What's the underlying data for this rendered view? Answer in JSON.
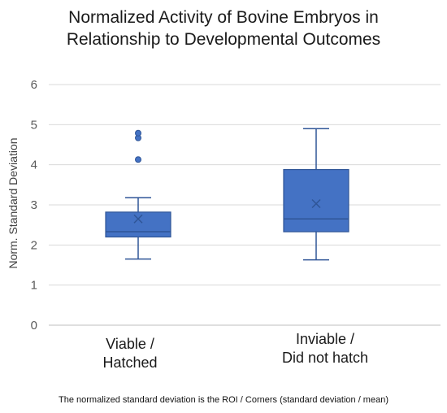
{
  "chart_data": {
    "type": "box",
    "title": [
      "Normalized Activity of Bovine Embryos in",
      "Relationship to Developmental Outcomes"
    ],
    "ylabel": "Norm. Standard Deviation",
    "ylim": [
      0,
      6
    ],
    "yticks": [
      0,
      1,
      2,
      3,
      4,
      5,
      6
    ],
    "ytick_labels": [
      "0",
      "1",
      "2",
      "3",
      "4",
      "5",
      "6"
    ],
    "grid": true,
    "color": "#4472C4",
    "categories": [
      {
        "lines": [
          "Viable /",
          "Hatched"
        ],
        "whisker_low": 1.65,
        "q1": 2.2,
        "median": 2.33,
        "q3": 2.82,
        "whisker_high": 3.18,
        "mean": 2.65,
        "outliers": [
          4.13,
          4.67,
          4.79
        ]
      },
      {
        "lines": [
          "Inviable /",
          "Did not hatch"
        ],
        "whisker_low": 1.63,
        "q1": 2.33,
        "median": 2.65,
        "q3": 3.88,
        "whisker_high": 4.9,
        "mean": 3.03,
        "outliers": []
      }
    ],
    "footnote": "The normalized standard deviation is the ROI / Corners (standard deviation / mean)"
  }
}
